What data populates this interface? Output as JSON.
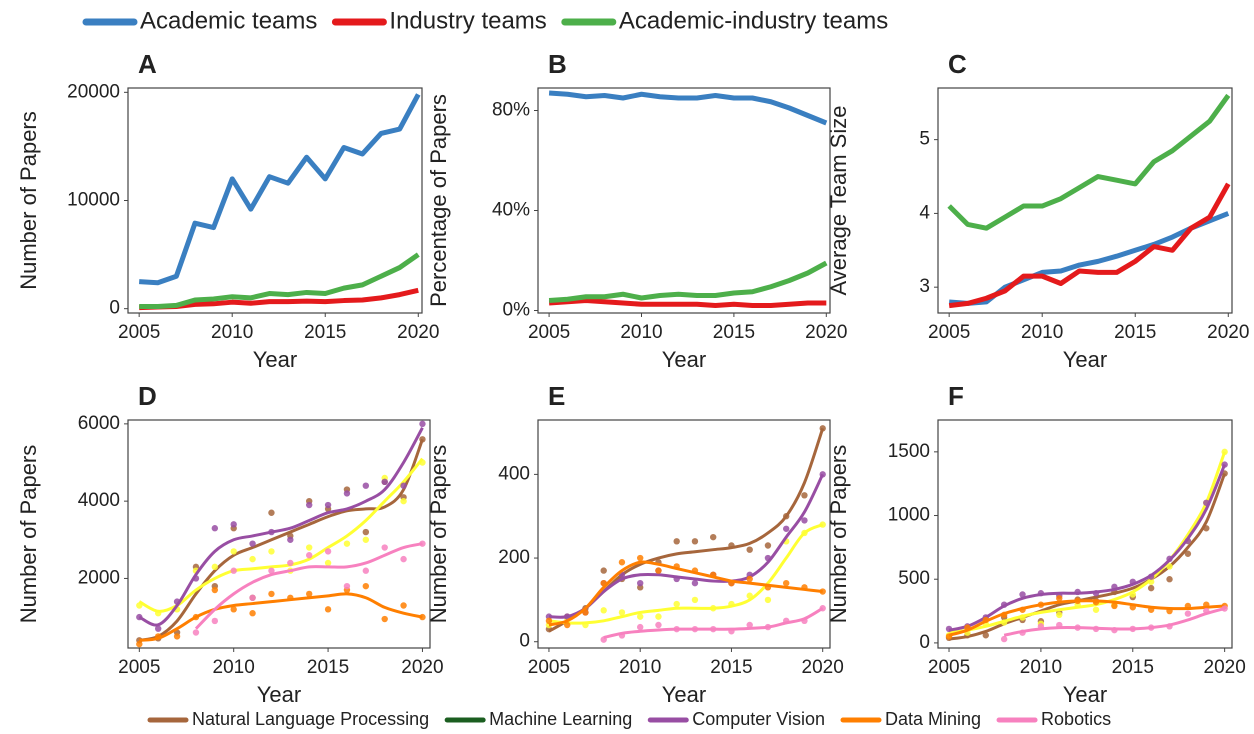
{
  "legends": [
    {
      "items": [
        {
          "name": "Academic teams",
          "color": "#3a7fc1"
        },
        {
          "name": "Industry teams",
          "color": "#e41a1c"
        },
        {
          "name": "Academic-industry teams",
          "color": "#4daf4a"
        }
      ]
    },
    {
      "items": [
        {
          "name": "Natural Language Processing",
          "color": "#a6663c"
        },
        {
          "name": "Machine Learning",
          "color": "#1b5e20"
        },
        {
          "name": "Computer Vision",
          "color": "#984ea3"
        },
        {
          "name": "Data Mining",
          "color": "#ff7f00"
        },
        {
          "name": "Robotics",
          "color": "#f781bf"
        }
      ]
    }
  ],
  "chart_data": [
    {
      "type": "line",
      "label": "A",
      "xlabel": "Year",
      "ylabel": "Number of Papers",
      "x": [
        2005,
        2006,
        2007,
        2008,
        2009,
        2010,
        2011,
        2012,
        2013,
        2014,
        2015,
        2016,
        2017,
        2018,
        2019,
        2020
      ],
      "xlim": [
        2004.4,
        2020.2
      ],
      "xticks": [
        2005,
        2010,
        2015,
        2020
      ],
      "ylim": [
        -400,
        20400
      ],
      "yticks": [
        0,
        10000,
        20000
      ],
      "series": [
        {
          "color": "#3a7fc1",
          "values": [
            2500,
            2400,
            3000,
            7900,
            7500,
            12000,
            9200,
            12200,
            11600,
            14000,
            12000,
            14900,
            14300,
            16200,
            16600,
            19800
          ]
        },
        {
          "color": "#e41a1c",
          "values": [
            100,
            150,
            200,
            400,
            450,
            600,
            500,
            650,
            650,
            700,
            650,
            750,
            800,
            1000,
            1300,
            1700
          ]
        },
        {
          "color": "#4daf4a",
          "values": [
            200,
            200,
            300,
            800,
            900,
            1100,
            1000,
            1400,
            1300,
            1500,
            1400,
            1900,
            2200,
            3000,
            3800,
            5000
          ]
        }
      ]
    },
    {
      "type": "line",
      "label": "B",
      "xlabel": "Year",
      "ylabel": "Percentage of Papers",
      "x": [
        2005,
        2006,
        2007,
        2008,
        2009,
        2010,
        2011,
        2012,
        2013,
        2014,
        2015,
        2016,
        2017,
        2018,
        2019,
        2020
      ],
      "xlim": [
        2004.4,
        2020.2
      ],
      "xticks": [
        2005,
        2010,
        2015,
        2020
      ],
      "ylim": [
        -1,
        89
      ],
      "yticks": [
        {
          "value": 0,
          "label": "0%"
        },
        {
          "value": 40,
          "label": "40%"
        },
        {
          "value": 80,
          "label": "80%"
        }
      ],
      "series": [
        {
          "color": "#3a7fc1",
          "values": [
            87,
            86.5,
            85.5,
            86,
            85,
            86.5,
            85.5,
            85,
            85,
            86,
            85,
            85,
            83.5,
            81,
            78,
            75
          ]
        },
        {
          "color": "#e41a1c",
          "values": [
            3,
            3.5,
            4,
            3.5,
            3,
            2.5,
            2.5,
            2.5,
            2.5,
            2,
            2.5,
            2,
            2,
            2.5,
            3,
            3
          ]
        },
        {
          "color": "#4daf4a",
          "values": [
            4,
            4.5,
            5.5,
            5.5,
            6.5,
            5,
            6,
            6.5,
            6,
            6,
            7,
            7.5,
            9.5,
            12,
            15,
            19
          ]
        }
      ]
    },
    {
      "type": "line",
      "label": "C",
      "xlabel": "Year",
      "ylabel": "Average Team Size",
      "x": [
        2005,
        2006,
        2007,
        2008,
        2009,
        2010,
        2011,
        2012,
        2013,
        2014,
        2015,
        2016,
        2017,
        2018,
        2019,
        2020
      ],
      "xlim": [
        2004.4,
        2020.2
      ],
      "xticks": [
        2005,
        2010,
        2015,
        2020
      ],
      "ylim": [
        2.65,
        5.7
      ],
      "yticks": [
        3,
        4,
        5
      ],
      "series": [
        {
          "color": "#3a7fc1",
          "values": [
            2.8,
            2.78,
            2.8,
            3.0,
            3.1,
            3.2,
            3.22,
            3.3,
            3.35,
            3.42,
            3.5,
            3.58,
            3.68,
            3.8,
            3.9,
            4.0
          ]
        },
        {
          "color": "#e41a1c",
          "values": [
            2.75,
            2.78,
            2.85,
            2.95,
            3.15,
            3.15,
            3.05,
            3.22,
            3.2,
            3.2,
            3.35,
            3.55,
            3.5,
            3.8,
            3.95,
            4.4
          ]
        },
        {
          "color": "#4daf4a",
          "values": [
            4.1,
            3.85,
            3.8,
            3.95,
            4.1,
            4.1,
            4.2,
            4.35,
            4.5,
            4.45,
            4.4,
            4.7,
            4.85,
            5.05,
            5.25,
            5.6
          ]
        }
      ]
    },
    {
      "type": "scatter_fit",
      "label": "D",
      "xlabel": "Year",
      "ylabel": "Number of Papers",
      "x": [
        2005,
        2006,
        2007,
        2008,
        2009,
        2010,
        2011,
        2012,
        2013,
        2014,
        2015,
        2016,
        2017,
        2018,
        2019,
        2020
      ],
      "xlim": [
        2004.4,
        2020.4
      ],
      "xticks": [
        2005,
        2010,
        2015,
        2020
      ],
      "ylim": [
        200,
        6100
      ],
      "yticks": [
        2000,
        4000,
        6000
      ],
      "series": [
        {
          "color": "#a6663c",
          "fit": [
            400,
            500,
            900,
            1600,
            2200,
            2600,
            2800,
            3000,
            3200,
            3400,
            3600,
            3750,
            3800,
            3850,
            4300,
            5600
          ],
          "values": [
            400,
            450,
            600,
            2300,
            1800,
            3300,
            1500,
            3700,
            3100,
            4000,
            3800,
            4300,
            3200,
            4500,
            4100,
            5600
          ]
        },
        {
          "color": "#ffff33",
          "fit": [
            1400,
            1150,
            1300,
            1700,
            2000,
            2200,
            2250,
            2300,
            2350,
            2500,
            2800,
            3100,
            3500,
            4000,
            4500,
            5100
          ],
          "values": [
            1300,
            1100,
            1200,
            2200,
            2300,
            2700,
            2500,
            2700,
            2200,
            2800,
            2400,
            2900,
            3000,
            4600,
            4000,
            5000
          ]
        },
        {
          "color": "#984ea3",
          "fit": [
            1000,
            800,
            1300,
            2100,
            2700,
            3000,
            3100,
            3200,
            3300,
            3500,
            3700,
            3800,
            4000,
            4300,
            5000,
            5900
          ],
          "values": [
            1000,
            700,
            1400,
            2000,
            3300,
            3400,
            2900,
            3200,
            3000,
            3900,
            3900,
            4200,
            4400,
            4500,
            4400,
            6000
          ]
        },
        {
          "color": "#ff7f00",
          "fit": [
            400,
            450,
            700,
            1000,
            1200,
            1300,
            1350,
            1400,
            1450,
            1500,
            1550,
            1600,
            1500,
            1250,
            1100,
            1000
          ],
          "values": [
            300,
            500,
            500,
            1000,
            1700,
            1200,
            1100,
            1600,
            1500,
            1600,
            1200,
            1700,
            1800,
            950,
            1300,
            1000
          ]
        },
        {
          "color": "#f781bf",
          "fit": [
            null,
            null,
            null,
            700,
            1200,
            1600,
            1900,
            2100,
            2200,
            2300,
            2300,
            2300,
            2400,
            2600,
            2800,
            2900
          ],
          "values": [
            null,
            null,
            null,
            600,
            900,
            2200,
            1500,
            2200,
            2400,
            2600,
            2700,
            1800,
            2200,
            2800,
            2500,
            2900
          ]
        }
      ]
    },
    {
      "type": "scatter_fit",
      "label": "E",
      "xlabel": "Year",
      "ylabel": "Number of Papers",
      "x": [
        2005,
        2006,
        2007,
        2008,
        2009,
        2010,
        2011,
        2012,
        2013,
        2014,
        2015,
        2016,
        2017,
        2018,
        2019,
        2020
      ],
      "xlim": [
        2004.4,
        2020.4
      ],
      "xticks": [
        2005,
        2010,
        2015,
        2020
      ],
      "ylim": [
        -15,
        530
      ],
      "yticks": [
        0,
        200,
        400
      ],
      "series": [
        {
          "color": "#a6663c",
          "fit": [
            25,
            50,
            80,
            120,
            160,
            185,
            200,
            210,
            215,
            220,
            225,
            235,
            260,
            300,
            380,
            510
          ],
          "values": [
            30,
            60,
            80,
            170,
            150,
            130,
            190,
            240,
            240,
            250,
            230,
            220,
            230,
            300,
            350,
            510
          ]
        },
        {
          "color": "#ffff33",
          "fit": [
            50,
            45,
            45,
            50,
            60,
            70,
            75,
            80,
            80,
            80,
            85,
            100,
            140,
            200,
            260,
            280
          ],
          "values": [
            40,
            55,
            40,
            75,
            70,
            60,
            60,
            90,
            100,
            80,
            90,
            110,
            100,
            240,
            260,
            280
          ]
        },
        {
          "color": "#984ea3",
          "fit": [
            60,
            60,
            80,
            120,
            150,
            160,
            160,
            155,
            150,
            145,
            145,
            155,
            190,
            250,
            310,
            400
          ],
          "values": [
            60,
            60,
            70,
            140,
            160,
            140,
            170,
            150,
            140,
            160,
            140,
            160,
            200,
            270,
            290,
            400
          ]
        },
        {
          "color": "#ff7f00",
          "fit": [
            40,
            50,
            80,
            130,
            170,
            190,
            185,
            175,
            165,
            155,
            145,
            140,
            135,
            130,
            125,
            120
          ],
          "values": [
            50,
            40,
            70,
            140,
            190,
            200,
            170,
            180,
            170,
            160,
            140,
            150,
            130,
            140,
            130,
            120
          ]
        },
        {
          "color": "#f781bf",
          "fit": [
            null,
            null,
            null,
            10,
            20,
            25,
            28,
            30,
            30,
            30,
            30,
            32,
            35,
            45,
            55,
            80
          ],
          "values": [
            null,
            null,
            null,
            5,
            15,
            35,
            40,
            30,
            30,
            30,
            25,
            40,
            35,
            50,
            50,
            80
          ]
        }
      ]
    },
    {
      "type": "scatter_fit",
      "label": "F",
      "xlabel": "Year",
      "ylabel": "Number of Papers",
      "x": [
        2005,
        2006,
        2007,
        2008,
        2009,
        2010,
        2011,
        2012,
        2013,
        2014,
        2015,
        2016,
        2017,
        2018,
        2019,
        2020
      ],
      "xlim": [
        2004.4,
        2020.4
      ],
      "xticks": [
        2005,
        2010,
        2015,
        2020
      ],
      "ylim": [
        -40,
        1750
      ],
      "yticks": [
        0,
        500,
        1000,
        1500
      ],
      "series": [
        {
          "color": "#a6663c",
          "fit": [
            30,
            50,
            90,
            150,
            200,
            250,
            300,
            330,
            360,
            390,
            430,
            500,
            600,
            750,
            950,
            1330
          ],
          "values": [
            40,
            60,
            60,
            200,
            180,
            170,
            240,
            340,
            330,
            400,
            360,
            430,
            500,
            700,
            900,
            1330
          ]
        },
        {
          "color": "#ffff33",
          "fit": [
            80,
            100,
            130,
            170,
            210,
            240,
            260,
            280,
            300,
            340,
            400,
            500,
            650,
            850,
            1100,
            1500
          ],
          "values": [
            60,
            80,
            150,
            160,
            200,
            150,
            220,
            300,
            260,
            300,
            380,
            480,
            600,
            800,
            1100,
            1500
          ]
        },
        {
          "color": "#984ea3",
          "fit": [
            100,
            130,
            200,
            290,
            350,
            380,
            390,
            390,
            400,
            420,
            460,
            530,
            650,
            820,
            1050,
            1400
          ],
          "values": [
            110,
            130,
            200,
            300,
            380,
            390,
            370,
            400,
            390,
            440,
            480,
            520,
            660,
            800,
            1100,
            1400
          ]
        },
        {
          "color": "#ff7f00",
          "fit": [
            60,
            100,
            170,
            230,
            270,
            300,
            320,
            330,
            330,
            320,
            300,
            280,
            270,
            270,
            280,
            290
          ],
          "values": [
            50,
            120,
            180,
            220,
            260,
            300,
            350,
            330,
            320,
            290,
            280,
            260,
            250,
            290,
            300,
            290
          ]
        },
        {
          "color": "#f781bf",
          "fit": [
            null,
            null,
            null,
            60,
            90,
            110,
            120,
            120,
            115,
            110,
            110,
            120,
            140,
            180,
            230,
            270
          ],
          "values": [
            null,
            null,
            null,
            30,
            80,
            130,
            140,
            120,
            110,
            100,
            110,
            120,
            130,
            230,
            250,
            270
          ]
        }
      ]
    }
  ]
}
